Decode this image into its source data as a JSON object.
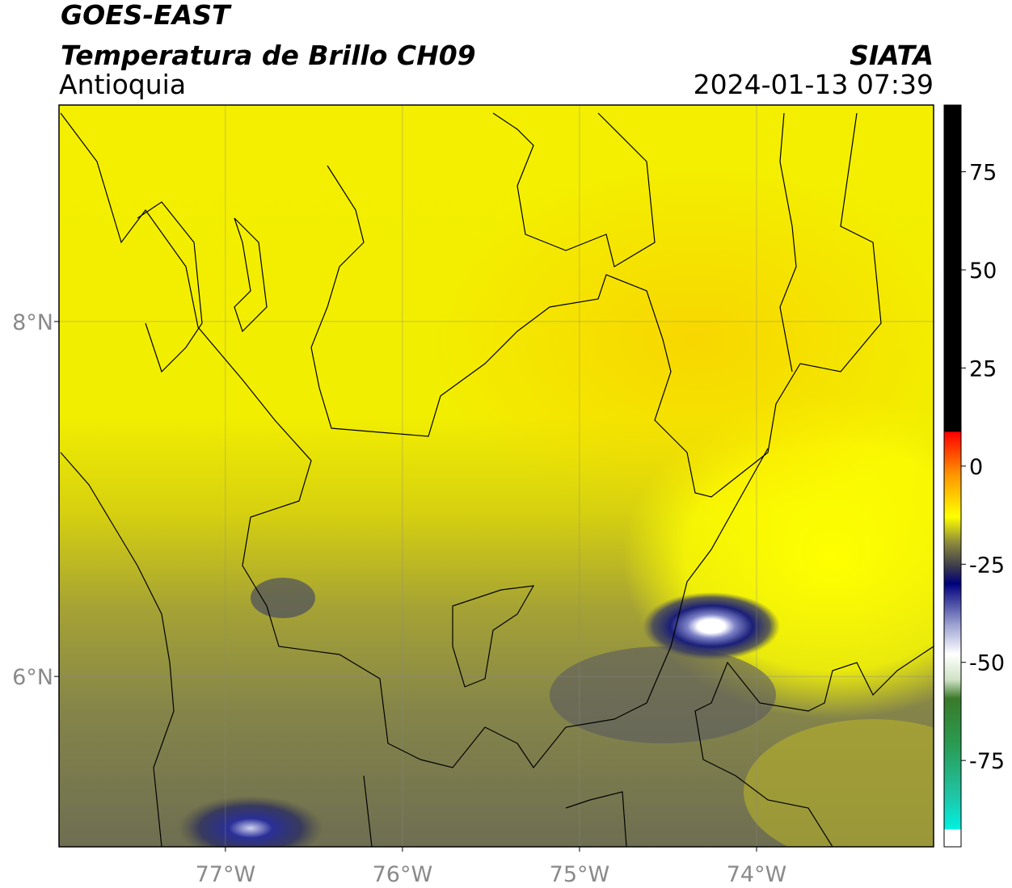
{
  "header": {
    "satellite": "GOES-EAST",
    "product": "Temperatura de Brillo CH09",
    "region": "Antioquia",
    "source": "SIATA",
    "datetime": "2024-01-13 07:39"
  },
  "map": {
    "xlim": [
      -77.94,
      -73.0
    ],
    "ylim": [
      5.04,
      9.22
    ],
    "xticks": [
      {
        "value": -77,
        "label": "77°W"
      },
      {
        "value": -76,
        "label": "76°W"
      },
      {
        "value": -75,
        "label": "75°W"
      },
      {
        "value": -74,
        "label": "74°W"
      }
    ],
    "yticks": [
      {
        "value": 6,
        "label": "6°N"
      },
      {
        "value": 8,
        "label": "8°N"
      }
    ],
    "grid": true
  },
  "colorbar": {
    "lim": [
      -97,
      92
    ],
    "ticks": [
      -75,
      -50,
      -25,
      0,
      25,
      50,
      75
    ]
  }
}
